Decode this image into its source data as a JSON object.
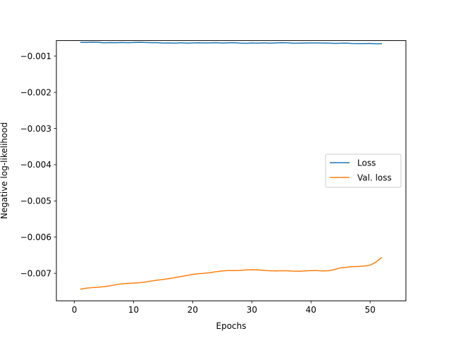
{
  "chart_data": {
    "type": "line",
    "title": "",
    "xlabel": "Epochs",
    "ylabel": "Negative log-likelihood",
    "xlim": [
      -3.05,
      56.05
    ],
    "ylim": [
      -0.00776,
      -0.00057
    ],
    "xticks": [
      0,
      10,
      20,
      30,
      40,
      50
    ],
    "yticks": [
      -0.007,
      -0.006,
      -0.005,
      -0.004,
      -0.003,
      -0.002,
      -0.001
    ],
    "ytick_labels": [
      "−0.007",
      "−0.006",
      "−0.005",
      "−0.004",
      "−0.003",
      "−0.002",
      "−0.001"
    ],
    "grid": false,
    "legend_position": "center-right",
    "series": [
      {
        "name": "Loss",
        "color": "#1f77b4",
        "x": [
          1,
          2,
          3,
          4,
          5,
          6,
          7,
          8,
          9,
          10,
          11,
          12,
          13,
          14,
          15,
          16,
          17,
          18,
          19,
          20,
          21,
          22,
          23,
          24,
          25,
          26,
          27,
          28,
          29,
          30,
          31,
          32,
          33,
          34,
          35,
          36,
          37,
          38,
          39,
          40,
          41,
          42,
          43,
          44,
          45,
          46,
          47,
          48,
          49,
          50,
          51,
          52
        ],
        "y": [
          -0.00062,
          -0.000622,
          -0.000615,
          -0.00062,
          -0.000632,
          -0.000626,
          -0.00063,
          -0.000623,
          -0.000628,
          -0.000625,
          -0.000618,
          -0.000625,
          -0.000628,
          -0.00063,
          -0.000638,
          -0.000635,
          -0.00064,
          -0.000632,
          -0.000642,
          -0.000636,
          -0.000632,
          -0.000636,
          -0.000634,
          -0.00063,
          -0.000638,
          -0.000632,
          -0.00063,
          -0.000642,
          -0.000646,
          -0.000636,
          -0.00064,
          -0.000634,
          -0.000642,
          -0.000636,
          -0.00063,
          -0.000632,
          -0.000644,
          -0.00064,
          -0.000638,
          -0.000636,
          -0.000636,
          -0.000638,
          -0.00064,
          -0.000648,
          -0.000644,
          -0.000642,
          -0.00065,
          -0.000652,
          -0.000652,
          -0.000648,
          -0.00066,
          -0.000655
        ]
      },
      {
        "name": "Val. loss",
        "color": "#ff7f0e",
        "x": [
          1,
          2,
          3,
          4,
          5,
          6,
          7,
          8,
          9,
          10,
          11,
          12,
          13,
          14,
          15,
          16,
          17,
          18,
          19,
          20,
          21,
          22,
          23,
          24,
          25,
          26,
          27,
          28,
          29,
          30,
          31,
          32,
          33,
          34,
          35,
          36,
          37,
          38,
          39,
          40,
          41,
          42,
          43,
          44,
          45,
          46,
          47,
          48,
          49,
          50,
          51,
          52
        ],
        "y": [
          -0.00744,
          -0.00741,
          -0.007395,
          -0.007385,
          -0.00737,
          -0.007345,
          -0.007315,
          -0.00729,
          -0.00728,
          -0.00727,
          -0.00726,
          -0.00724,
          -0.007215,
          -0.00719,
          -0.00717,
          -0.007145,
          -0.00712,
          -0.00709,
          -0.00706,
          -0.00703,
          -0.00701,
          -0.007,
          -0.00698,
          -0.006955,
          -0.006935,
          -0.006925,
          -0.006925,
          -0.00692,
          -0.006905,
          -0.0069,
          -0.006905,
          -0.00692,
          -0.00693,
          -0.006935,
          -0.00693,
          -0.00693,
          -0.00694,
          -0.006945,
          -0.006935,
          -0.006925,
          -0.006925,
          -0.006935,
          -0.00693,
          -0.006895,
          -0.00685,
          -0.006835,
          -0.006815,
          -0.00681,
          -0.0068,
          -0.006775,
          -0.00669,
          -0.00656
        ]
      }
    ]
  }
}
